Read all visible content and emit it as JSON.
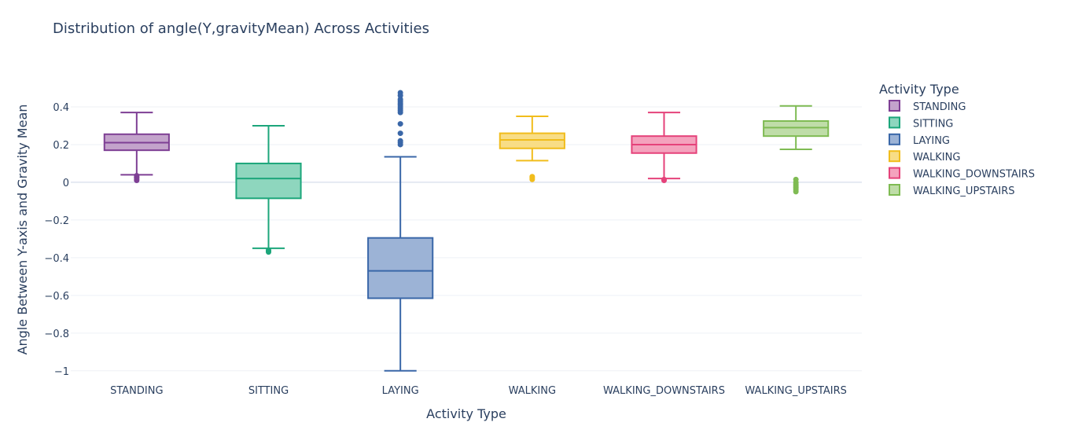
{
  "chart_data": {
    "type": "box",
    "title": "Distribution of angle(Y,gravityMean) Across Activities",
    "xlabel": "Activity Type",
    "ylabel": "Angle Between Y-axis and Gravity Mean",
    "ylim": [
      -1.03,
      0.5
    ],
    "yticks": [
      {
        "value": 0.4,
        "label": "0.4"
      },
      {
        "value": 0.2,
        "label": "0.2"
      },
      {
        "value": 0,
        "label": "0"
      },
      {
        "value": -0.2,
        "label": "−0.2"
      },
      {
        "value": -0.4,
        "label": "−0.4"
      },
      {
        "value": -0.6,
        "label": "−0.6"
      },
      {
        "value": -0.8,
        "label": "−0.8"
      },
      {
        "value": -1,
        "label": "−1"
      }
    ],
    "grid": true,
    "legend": {
      "title": "Activity Type",
      "position": "right"
    },
    "categories": [
      "STANDING",
      "SITTING",
      "LAYING",
      "WALKING",
      "WALKING_DOWNSTAIRS",
      "WALKING_UPSTAIRS"
    ],
    "series": [
      {
        "name": "STANDING",
        "color": "#7e3f94",
        "fill": "#c3a3cb",
        "min": 0.04,
        "q1": 0.17,
        "median": 0.21,
        "q3": 0.255,
        "max": 0.37,
        "outliers": [
          0.035,
          0.028,
          0.022,
          0.015,
          0.01
        ]
      },
      {
        "name": "SITTING",
        "color": "#1ca67b",
        "fill": "#8ed6be",
        "min": -0.35,
        "q1": -0.085,
        "median": 0.02,
        "q3": 0.1,
        "max": 0.3,
        "outliers": [
          -0.36,
          -0.365,
          -0.37
        ]
      },
      {
        "name": "LAYING",
        "color": "#3a67a8",
        "fill": "#9cb3d6",
        "min": -1.0,
        "q1": -0.615,
        "median": -0.47,
        "q3": -0.295,
        "max": 0.135,
        "outliers": [
          0.2,
          0.21,
          0.22,
          0.26,
          0.31,
          0.37,
          0.38,
          0.39,
          0.4,
          0.41,
          0.42,
          0.43,
          0.44,
          0.46,
          0.475
        ]
      },
      {
        "name": "WALKING",
        "color": "#f1bd1c",
        "fill": "#f8dd86",
        "min": 0.115,
        "q1": 0.18,
        "median": 0.225,
        "q3": 0.26,
        "max": 0.35,
        "outliers": [
          0.03,
          0.022,
          0.015
        ]
      },
      {
        "name": "WALKING_DOWNSTAIRS",
        "color": "#e5427a",
        "fill": "#f4a2bd",
        "min": 0.02,
        "q1": 0.155,
        "median": 0.2,
        "q3": 0.245,
        "max": 0.37,
        "outliers": [
          0.015,
          0.01
        ]
      },
      {
        "name": "WALKING_UPSTAIRS",
        "color": "#7fbb53",
        "fill": "#bfdda8",
        "min": 0.175,
        "q1": 0.245,
        "median": 0.29,
        "q3": 0.325,
        "max": 0.405,
        "outliers": [
          0.015,
          0.0,
          -0.01,
          -0.02,
          -0.03,
          -0.04,
          -0.05
        ]
      }
    ]
  }
}
